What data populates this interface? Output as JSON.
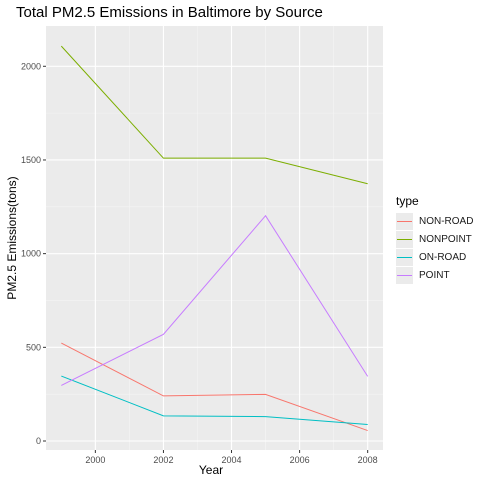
{
  "chart_data": {
    "type": "line",
    "title": "Total PM2.5 Emissions in Baltimore by Source",
    "xlabel": "Year",
    "ylabel": "PM2.5 Emissions(tons)",
    "x": [
      1999,
      2002,
      2005,
      2008
    ],
    "xticks": [
      2000,
      2002,
      2004,
      2006,
      2008
    ],
    "xtick_labels": [
      "2000",
      "2002",
      "2004",
      "2006",
      "2008"
    ],
    "yticks": [
      0,
      500,
      1000,
      1500,
      2000
    ],
    "ytick_labels": [
      "0",
      "500",
      "1000",
      "1500",
      "2000"
    ],
    "xlim": [
      1998.55,
      2008.45
    ],
    "ylim": [
      -48,
      2215
    ],
    "grid": true,
    "legend_title": "type",
    "legend_position": "right",
    "series": [
      {
        "name": "NON-ROAD",
        "color": "#F8766D",
        "values": [
          522.9,
          240.8,
          248.9,
          55.8
        ]
      },
      {
        "name": "NONPOINT",
        "color": "#7CAE00",
        "values": [
          2107.6,
          1509.5,
          1509.5,
          1373.2
        ]
      },
      {
        "name": "ON-ROAD",
        "color": "#00BFC4",
        "values": [
          346.8,
          134.3,
          130.4,
          88.3
        ]
      },
      {
        "name": "POINT",
        "color": "#C77CFF",
        "values": [
          296.8,
          569.3,
          1202.5,
          344.98
        ]
      }
    ]
  }
}
